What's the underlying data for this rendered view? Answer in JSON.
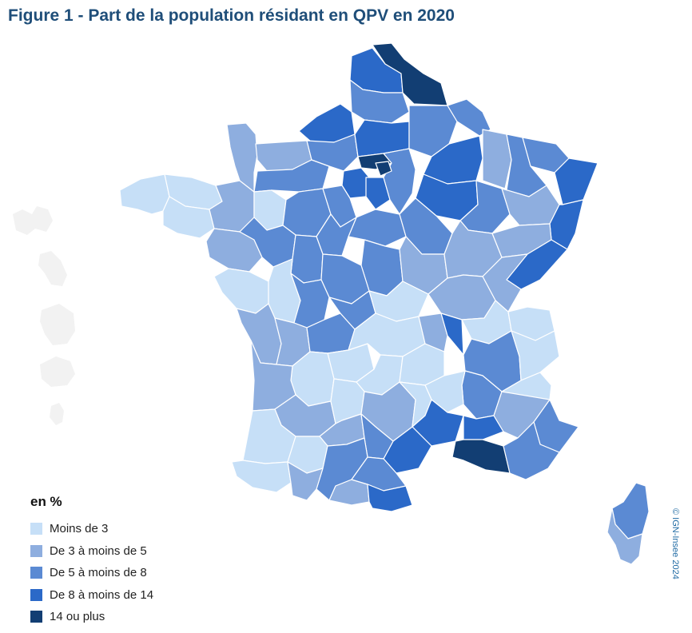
{
  "title": "Figure 1 - Part de la population résidant en QPV en 2020",
  "legend": {
    "title": "en %",
    "items": [
      {
        "label": "Moins de 3",
        "color": "#c6dff7"
      },
      {
        "label": "De 3 à moins de 5",
        "color": "#8eaedf"
      },
      {
        "label": "De 5 à moins de 8",
        "color": "#5b8ad3"
      },
      {
        "label": "De 8 à moins de 14",
        "color": "#2b69c8"
      },
      {
        "label": "14 ou plus",
        "color": "#123e73"
      }
    ]
  },
  "credit": "© IGN-Insee 2024",
  "colors": {
    "title": "#1f4e79",
    "overseas": "#f2f2f2",
    "border": "#ffffff"
  }
}
